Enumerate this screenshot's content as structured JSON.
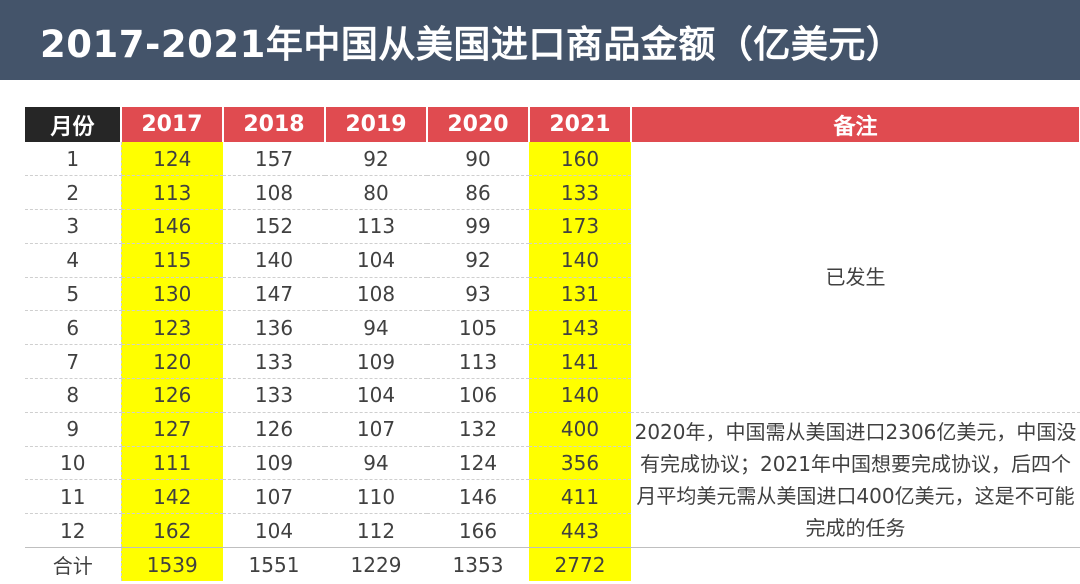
{
  "title": "2017-2021年中国从美国进口商品金额（亿美元）",
  "headers": {
    "month": "月份",
    "years": [
      "2017",
      "2018",
      "2019",
      "2020",
      "2021"
    ],
    "note": "备注"
  },
  "rows": [
    {
      "month": "1",
      "values": [
        "124",
        "157",
        "92",
        "90",
        "160"
      ]
    },
    {
      "month": "2",
      "values": [
        "113",
        "108",
        "80",
        "86",
        "133"
      ]
    },
    {
      "month": "3",
      "values": [
        "146",
        "152",
        "113",
        "99",
        "173"
      ]
    },
    {
      "month": "4",
      "values": [
        "115",
        "140",
        "104",
        "92",
        "140"
      ]
    },
    {
      "month": "5",
      "values": [
        "130",
        "147",
        "108",
        "93",
        "131"
      ]
    },
    {
      "month": "6",
      "values": [
        "123",
        "136",
        "94",
        "105",
        "143"
      ]
    },
    {
      "month": "7",
      "values": [
        "120",
        "133",
        "109",
        "113",
        "141"
      ]
    },
    {
      "month": "8",
      "values": [
        "126",
        "133",
        "104",
        "106",
        "140"
      ]
    },
    {
      "month": "9",
      "values": [
        "127",
        "126",
        "107",
        "132",
        "400"
      ]
    },
    {
      "month": "10",
      "values": [
        "111",
        "109",
        "94",
        "124",
        "356"
      ]
    },
    {
      "month": "11",
      "values": [
        "142",
        "107",
        "110",
        "146",
        "411"
      ]
    },
    {
      "month": "12",
      "values": [
        "162",
        "104",
        "112",
        "166",
        "443"
      ]
    }
  ],
  "total": {
    "label": "合计",
    "values": [
      "1539",
      "1551",
      "1229",
      "1353",
      "2772"
    ]
  },
  "notes": {
    "occurred": "已发生",
    "forecast": "2020年，中国需从美国进口2306亿美元，中国没有完成协议；2021年中国想要完成协议，后四个月平均美元需从美国进口400亿美元，这是不可能完成的任务"
  },
  "colors": {
    "title_bg": "#44546a",
    "header_red": "#e04b50",
    "header_dark": "#262626",
    "highlight": "#ffff00",
    "alert_text": "#ff0000"
  },
  "chart_data": {
    "type": "table",
    "title": "2017-2021年中国从美国进口商品金额（亿美元）",
    "columns": [
      "月份",
      "2017",
      "2018",
      "2019",
      "2020",
      "2021",
      "备注"
    ],
    "categories": [
      "1",
      "2",
      "3",
      "4",
      "5",
      "6",
      "7",
      "8",
      "9",
      "10",
      "11",
      "12"
    ],
    "series": [
      {
        "name": "2017",
        "values": [
          124,
          113,
          146,
          115,
          130,
          123,
          120,
          126,
          127,
          111,
          142,
          162
        ],
        "total": 1539
      },
      {
        "name": "2018",
        "values": [
          157,
          108,
          152,
          140,
          147,
          136,
          133,
          133,
          126,
          109,
          107,
          104
        ],
        "total": 1551
      },
      {
        "name": "2019",
        "values": [
          92,
          80,
          113,
          104,
          108,
          94,
          109,
          104,
          107,
          94,
          110,
          112
        ],
        "total": 1229
      },
      {
        "name": "2020",
        "values": [
          90,
          86,
          99,
          92,
          93,
          105,
          113,
          106,
          132,
          124,
          146,
          166
        ],
        "total": 1353
      },
      {
        "name": "2021",
        "values": [
          160,
          133,
          173,
          140,
          131,
          143,
          141,
          140,
          400,
          356,
          411,
          443
        ],
        "total": 2772
      }
    ]
  }
}
